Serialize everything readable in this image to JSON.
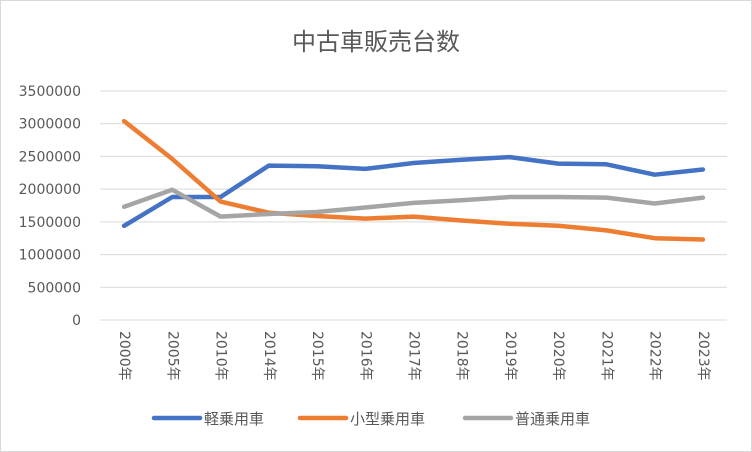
{
  "chart_data": {
    "type": "line",
    "title": "中古車販売台数",
    "xlabel": "",
    "ylabel": "",
    "ylim": [
      0,
      3500000
    ],
    "yticks": [
      0,
      500000,
      1000000,
      1500000,
      2000000,
      2500000,
      3000000,
      3500000
    ],
    "grid": true,
    "legend_position": "bottom",
    "categories": [
      "2000年",
      "2005年",
      "2010年",
      "2014年",
      "2015年",
      "2016年",
      "2017年",
      "2018年",
      "2019年",
      "2020年",
      "2021年",
      "2022年",
      "2023年"
    ],
    "series": [
      {
        "name": "軽乗用車",
        "color": "#4472C4",
        "values": [
          1440000,
          1880000,
          1880000,
          2360000,
          2350000,
          2310000,
          2400000,
          2450000,
          2490000,
          2390000,
          2380000,
          2220000,
          2300000
        ]
      },
      {
        "name": "小型乗用車",
        "color": "#ED7D31",
        "values": [
          3040000,
          2460000,
          1810000,
          1640000,
          1590000,
          1550000,
          1580000,
          1520000,
          1470000,
          1440000,
          1370000,
          1250000,
          1230000
        ]
      },
      {
        "name": "普通乗用車",
        "color": "#A5A5A5",
        "values": [
          1730000,
          1990000,
          1580000,
          1620000,
          1650000,
          1720000,
          1790000,
          1830000,
          1880000,
          1880000,
          1870000,
          1780000,
          1870000
        ]
      }
    ]
  }
}
